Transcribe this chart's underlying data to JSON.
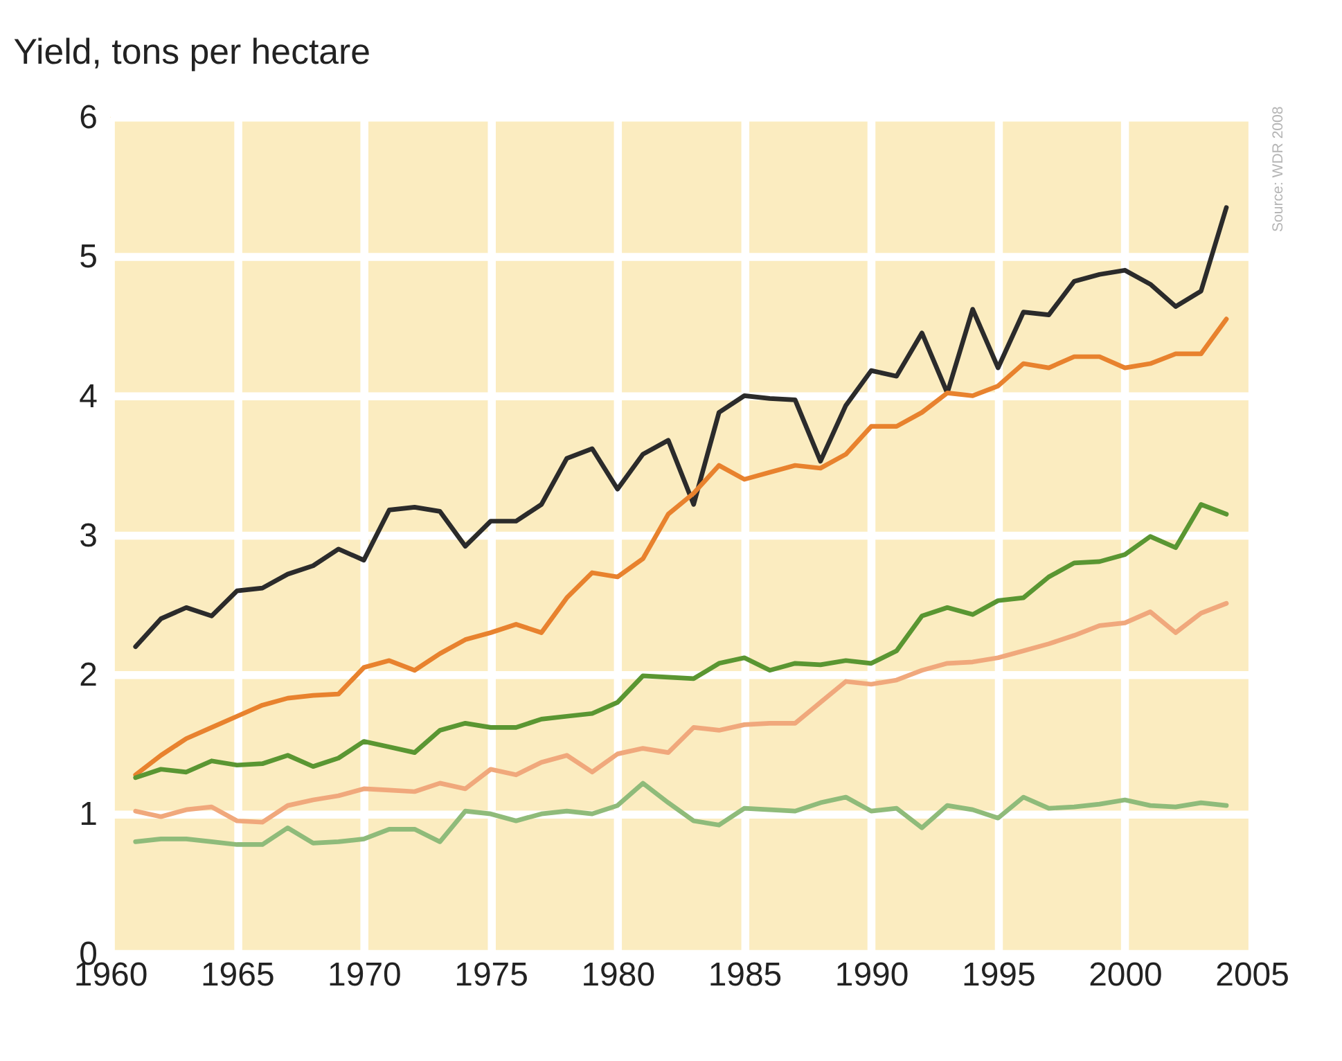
{
  "chart_data": {
    "type": "line",
    "ylabel": "Yield, tons per hectare",
    "annotations": [
      "Source: WDR 2008"
    ],
    "x": [
      1961,
      1962,
      1963,
      1964,
      1965,
      1966,
      1967,
      1968,
      1969,
      1970,
      1971,
      1972,
      1973,
      1974,
      1975,
      1976,
      1977,
      1978,
      1979,
      1980,
      1981,
      1982,
      1983,
      1984,
      1985,
      1986,
      1987,
      1988,
      1989,
      1990,
      1991,
      1992,
      1993,
      1994,
      1995,
      1996,
      1997,
      1998,
      1999,
      2000,
      2001,
      2002,
      2003,
      2004
    ],
    "series": [
      {
        "color": "#2b2b2b",
        "values": [
          2.2,
          2.4,
          2.48,
          2.42,
          2.6,
          2.62,
          2.72,
          2.78,
          2.9,
          2.82,
          3.18,
          3.2,
          3.17,
          2.92,
          3.1,
          3.1,
          3.22,
          3.55,
          3.62,
          3.33,
          3.58,
          3.68,
          3.22,
          3.88,
          4.0,
          3.98,
          3.97,
          3.53,
          3.93,
          4.18,
          4.14,
          4.45,
          4.02,
          4.62,
          4.2,
          4.6,
          4.58,
          4.82,
          4.87,
          4.9,
          4.8,
          4.64,
          4.75,
          5.35
        ]
      },
      {
        "color": "#e8822e",
        "values": [
          1.28,
          1.42,
          1.54,
          1.62,
          1.7,
          1.78,
          1.83,
          1.85,
          1.86,
          2.05,
          2.1,
          2.03,
          2.15,
          2.25,
          2.3,
          2.36,
          2.3,
          2.55,
          2.73,
          2.7,
          2.83,
          3.15,
          3.3,
          3.5,
          3.4,
          3.45,
          3.5,
          3.48,
          3.58,
          3.78,
          3.78,
          3.88,
          4.02,
          4.0,
          4.07,
          4.23,
          4.2,
          4.28,
          4.28,
          4.2,
          4.23,
          4.3,
          4.3,
          4.55
        ]
      },
      {
        "color": "#5a9632",
        "values": [
          1.26,
          1.32,
          1.3,
          1.38,
          1.35,
          1.36,
          1.42,
          1.34,
          1.4,
          1.52,
          1.48,
          1.44,
          1.6,
          1.65,
          1.62,
          1.62,
          1.68,
          1.7,
          1.72,
          1.8,
          1.99,
          1.98,
          1.97,
          2.08,
          2.12,
          2.03,
          2.08,
          2.07,
          2.1,
          2.08,
          2.17,
          2.42,
          2.48,
          2.43,
          2.53,
          2.55,
          2.7,
          2.8,
          2.81,
          2.86,
          2.99,
          2.91,
          3.22,
          3.15
        ]
      },
      {
        "color": "#f0a87c",
        "values": [
          1.02,
          0.98,
          1.03,
          1.05,
          0.95,
          0.94,
          1.06,
          1.1,
          1.13,
          1.18,
          1.17,
          1.16,
          1.22,
          1.18,
          1.32,
          1.28,
          1.37,
          1.42,
          1.3,
          1.43,
          1.47,
          1.44,
          1.62,
          1.6,
          1.64,
          1.65,
          1.65,
          1.8,
          1.95,
          1.93,
          1.96,
          2.03,
          2.08,
          2.09,
          2.12,
          2.17,
          2.22,
          2.28,
          2.35,
          2.37,
          2.45,
          2.3,
          2.44,
          2.51
        ]
      },
      {
        "color": "#8fbb7a",
        "values": [
          0.8,
          0.82,
          0.82,
          0.8,
          0.78,
          0.78,
          0.9,
          0.79,
          0.8,
          0.82,
          0.89,
          0.89,
          0.8,
          1.02,
          1.0,
          0.95,
          1.0,
          1.02,
          1.0,
          1.06,
          1.22,
          1.08,
          0.95,
          0.92,
          1.04,
          1.03,
          1.02,
          1.08,
          1.12,
          1.02,
          1.04,
          0.9,
          1.06,
          1.03,
          0.97,
          1.12,
          1.04,
          1.05,
          1.07,
          1.1,
          1.06,
          1.05,
          1.08,
          1.06
        ]
      }
    ],
    "xlim": [
      1960,
      2005
    ],
    "xticks": [
      1960,
      1965,
      1970,
      1975,
      1980,
      1985,
      1990,
      1995,
      2000,
      2005
    ],
    "ylim": [
      0,
      6
    ],
    "yticks": [
      0,
      1,
      2,
      3,
      4,
      5,
      6
    ],
    "grid": true,
    "legend": false,
    "marker": "none",
    "line_style": "solid"
  }
}
